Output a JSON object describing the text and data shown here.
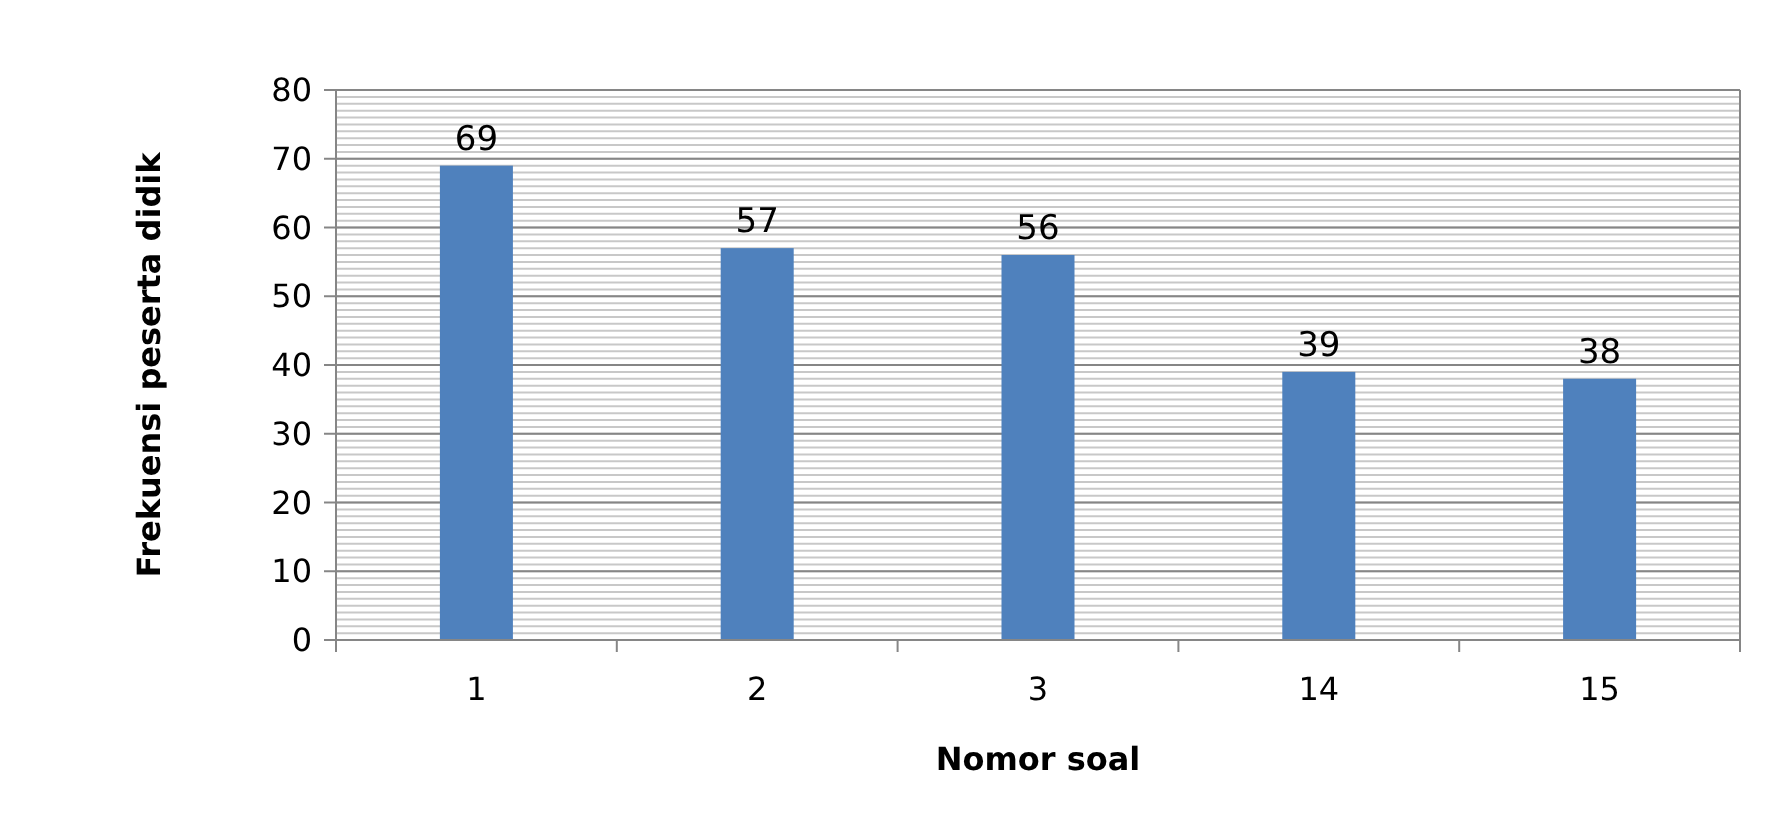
{
  "chart_data": {
    "type": "bar",
    "xlabel": "Nomor soal",
    "ylabel": "Frekuensi peserta didik",
    "categories": [
      "1",
      "2",
      "3",
      "14",
      "15"
    ],
    "values": [
      69,
      57,
      56,
      39,
      38
    ],
    "color": "#4f81bd",
    "ylim": [
      0,
      80
    ],
    "yticks": [
      0,
      10,
      20,
      30,
      40,
      50,
      60,
      70,
      80
    ],
    "grid": "y",
    "data_labels": true
  }
}
